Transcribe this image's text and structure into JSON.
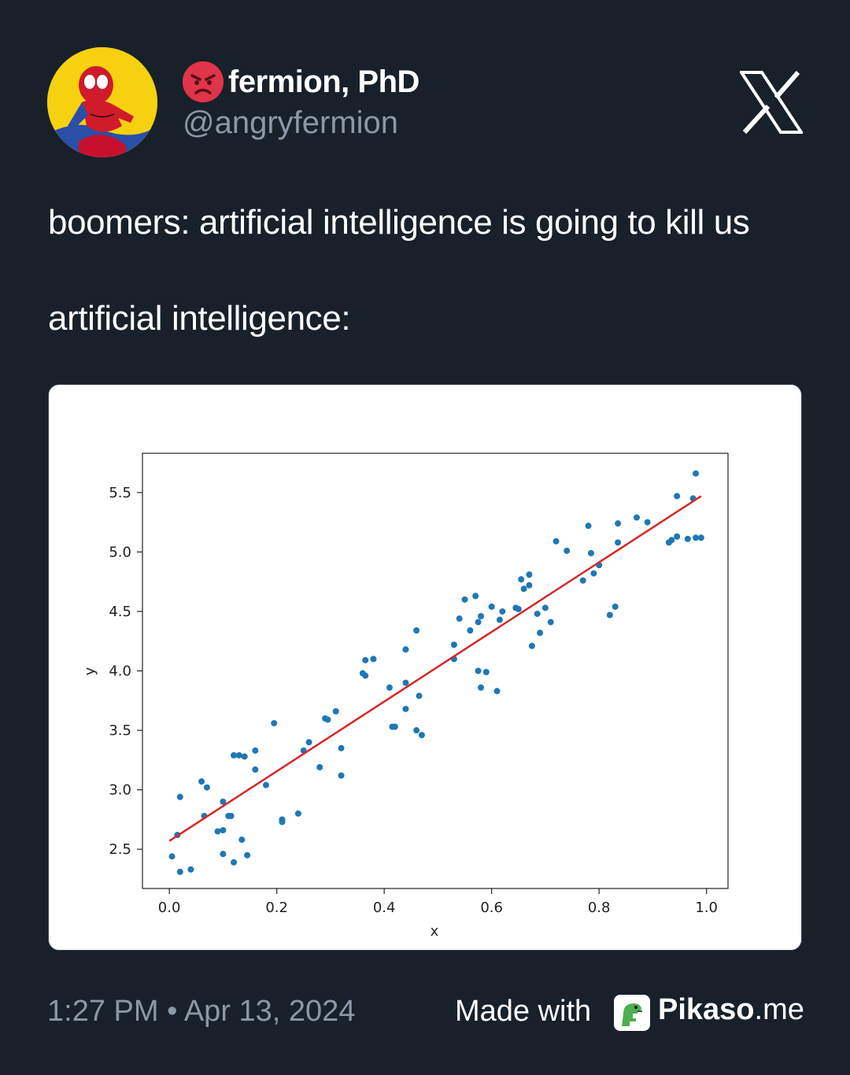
{
  "author": {
    "display_name": "fermion, PhD",
    "handle": "@angryfermion",
    "avatar_icon": "spiderman-avatar",
    "emoji_icon": "angry-face-emoji"
  },
  "tweet": {
    "line1": "boomers: artificial intelligence is going to kill us",
    "line2": "artificial intelligence:"
  },
  "platform_icon": "x-logo-icon",
  "footer": {
    "timestamp": "1:27 PM • Apr 13, 2024",
    "made_with": "Made with",
    "brand_bold": "Pikaso",
    "brand_suffix": ".me",
    "brand_icon": "dinosaur-icon"
  },
  "colors": {
    "background": "#18202a",
    "secondary_text": "#8b98a5",
    "scatter": "#1f77b4",
    "fit_line": "#d62728"
  },
  "chart_data": {
    "type": "scatter",
    "xlabel": "x",
    "ylabel": "y",
    "xlim": [
      -0.05,
      1.04
    ],
    "ylim": [
      2.17,
      5.83
    ],
    "xticks": [
      0.0,
      0.2,
      0.4,
      0.6,
      0.8,
      1.0
    ],
    "xtick_labels": [
      "0.0",
      "0.2",
      "0.4",
      "0.6",
      "0.8",
      "1.0"
    ],
    "yticks": [
      2.5,
      3.0,
      3.5,
      4.0,
      4.5,
      5.0,
      5.5
    ],
    "ytick_labels": [
      "2.5",
      "3.0",
      "3.5",
      "4.0",
      "4.5",
      "5.0",
      "5.5"
    ],
    "grid": false,
    "points": [
      [
        0.005,
        2.44
      ],
      [
        0.015,
        2.62
      ],
      [
        0.02,
        2.31
      ],
      [
        0.02,
        2.94
      ],
      [
        0.04,
        2.33
      ],
      [
        0.06,
        3.07
      ],
      [
        0.065,
        2.78
      ],
      [
        0.07,
        3.02
      ],
      [
        0.09,
        2.65
      ],
      [
        0.1,
        2.66
      ],
      [
        0.1,
        2.9
      ],
      [
        0.1,
        2.46
      ],
      [
        0.11,
        2.78
      ],
      [
        0.115,
        2.78
      ],
      [
        0.12,
        2.39
      ],
      [
        0.12,
        3.29
      ],
      [
        0.13,
        3.29
      ],
      [
        0.135,
        2.58
      ],
      [
        0.14,
        3.28
      ],
      [
        0.145,
        2.45
      ],
      [
        0.16,
        3.33
      ],
      [
        0.16,
        3.17
      ],
      [
        0.18,
        3.04
      ],
      [
        0.195,
        3.56
      ],
      [
        0.21,
        2.75
      ],
      [
        0.21,
        2.73
      ],
      [
        0.24,
        2.8
      ],
      [
        0.25,
        3.33
      ],
      [
        0.26,
        3.4
      ],
      [
        0.28,
        3.19
      ],
      [
        0.29,
        3.6
      ],
      [
        0.295,
        3.59
      ],
      [
        0.31,
        3.66
      ],
      [
        0.32,
        3.35
      ],
      [
        0.32,
        3.12
      ],
      [
        0.36,
        3.98
      ],
      [
        0.365,
        3.96
      ],
      [
        0.365,
        4.09
      ],
      [
        0.38,
        4.1
      ],
      [
        0.41,
        3.86
      ],
      [
        0.415,
        3.53
      ],
      [
        0.42,
        3.53
      ],
      [
        0.44,
        3.68
      ],
      [
        0.44,
        3.9
      ],
      [
        0.44,
        4.18
      ],
      [
        0.46,
        3.5
      ],
      [
        0.46,
        4.34
      ],
      [
        0.465,
        3.79
      ],
      [
        0.47,
        3.46
      ],
      [
        0.53,
        4.22
      ],
      [
        0.53,
        4.1
      ],
      [
        0.54,
        4.44
      ],
      [
        0.55,
        4.6
      ],
      [
        0.56,
        4.34
      ],
      [
        0.57,
        4.63
      ],
      [
        0.575,
        4.41
      ],
      [
        0.575,
        4.0
      ],
      [
        0.58,
        3.86
      ],
      [
        0.58,
        4.46
      ],
      [
        0.59,
        3.99
      ],
      [
        0.6,
        4.54
      ],
      [
        0.61,
        3.83
      ],
      [
        0.615,
        4.43
      ],
      [
        0.62,
        4.5
      ],
      [
        0.645,
        4.53
      ],
      [
        0.65,
        4.52
      ],
      [
        0.655,
        4.77
      ],
      [
        0.66,
        4.69
      ],
      [
        0.67,
        4.81
      ],
      [
        0.67,
        4.72
      ],
      [
        0.675,
        4.21
      ],
      [
        0.685,
        4.48
      ],
      [
        0.69,
        4.32
      ],
      [
        0.7,
        4.53
      ],
      [
        0.71,
        4.41
      ],
      [
        0.72,
        5.09
      ],
      [
        0.74,
        5.01
      ],
      [
        0.77,
        4.76
      ],
      [
        0.78,
        5.22
      ],
      [
        0.785,
        4.99
      ],
      [
        0.79,
        4.82
      ],
      [
        0.8,
        4.89
      ],
      [
        0.82,
        4.47
      ],
      [
        0.83,
        4.54
      ],
      [
        0.835,
        5.08
      ],
      [
        0.835,
        5.24
      ],
      [
        0.87,
        5.29
      ],
      [
        0.89,
        5.25
      ],
      [
        0.93,
        5.08
      ],
      [
        0.935,
        5.1
      ],
      [
        0.945,
        5.13
      ],
      [
        0.945,
        5.47
      ],
      [
        0.965,
        5.11
      ],
      [
        0.975,
        5.45
      ],
      [
        0.98,
        5.12
      ],
      [
        0.98,
        5.66
      ],
      [
        0.99,
        5.12
      ]
    ],
    "fit_line": {
      "x": [
        0.0,
        0.99
      ],
      "y": [
        2.57,
        5.47
      ]
    }
  }
}
